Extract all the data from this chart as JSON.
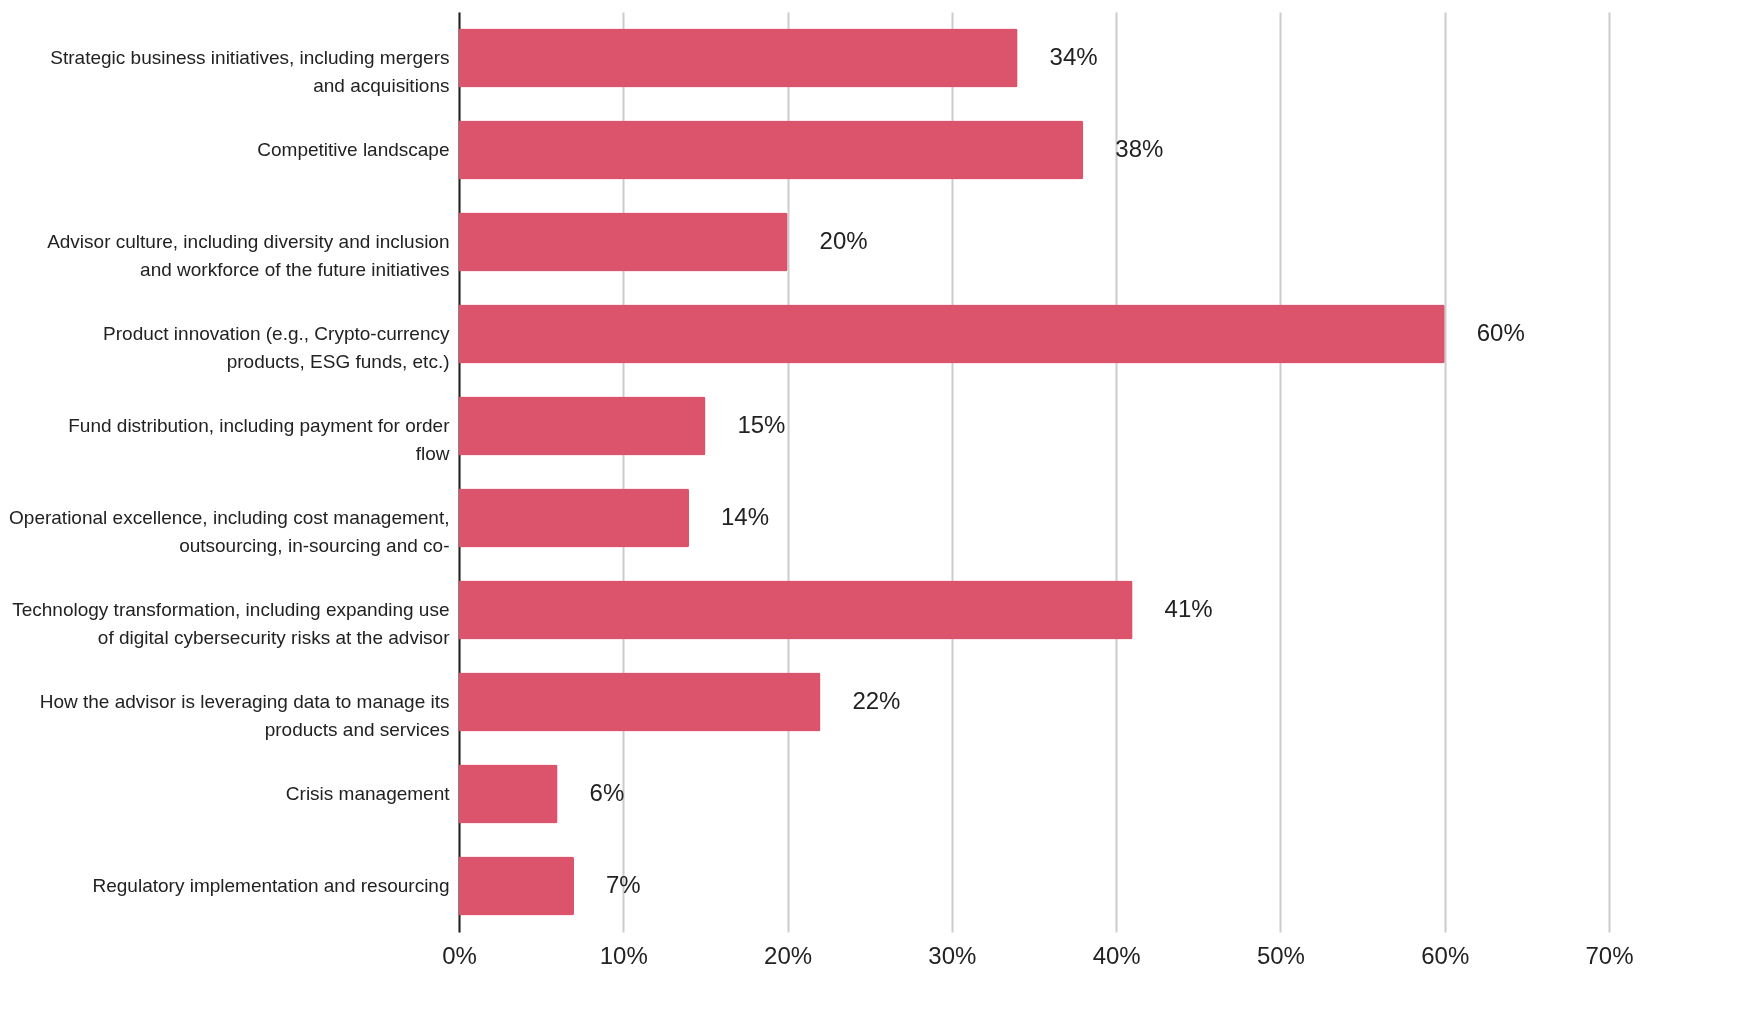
{
  "chart_data": {
    "type": "bar",
    "orientation": "horizontal",
    "categories": [
      "Strategic business initiatives, including mergers and acquisitions",
      "Competitive landscape",
      "Advisor culture, including diversity and inclusion and workforce of the future initiatives",
      "Product innovation (e.g., Crypto-currency products, ESG funds, etc.)",
      "Fund distribution, including payment for order flow",
      "Operational excellence, including cost management, outsourcing, in-sourcing and co-",
      "Technology transformation, including expanding use of digital cybersecurity risks at the advisor",
      "How the advisor is leveraging data to manage its products and services",
      "Crisis management",
      "Regulatory implementation and resourcing"
    ],
    "values": [
      34,
      38,
      20,
      60,
      15,
      14,
      41,
      22,
      6,
      7
    ],
    "value_labels": [
      "34%",
      "38%",
      "20%",
      "60%",
      "15%",
      "14%",
      "41%",
      "22%",
      "6%",
      "7%"
    ],
    "color": "#dc546c",
    "xlim": [
      0,
      70
    ],
    "xticks": [
      {
        "value": 0,
        "label": "0%"
      },
      {
        "value": 10,
        "label": "10%"
      },
      {
        "value": 20,
        "label": "20%"
      },
      {
        "value": 30,
        "label": "30%"
      },
      {
        "value": 40,
        "label": "40%"
      },
      {
        "value": 50,
        "label": "50%"
      },
      {
        "value": 60,
        "label": "60%"
      },
      {
        "value": 70,
        "label": "70%"
      }
    ],
    "grid": "x"
  }
}
